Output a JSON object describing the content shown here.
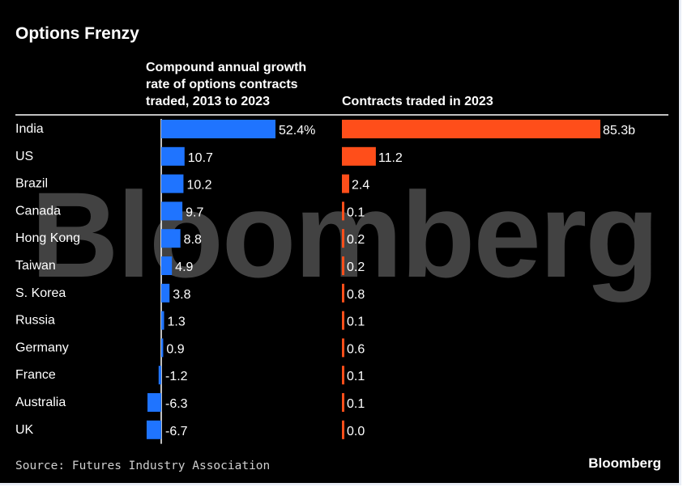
{
  "chart_data": {
    "title": "Options Frenzy",
    "source": "Source: Futures Industry Association",
    "brand": "Bloomberg",
    "watermark": "Bloomberg",
    "categories": [
      "India",
      "US",
      "Brazil",
      "Canada",
      "Hong Kong",
      "Taiwan",
      "S. Korea",
      "Russia",
      "Germany",
      "France",
      "Australia",
      "UK"
    ],
    "panels": [
      {
        "type": "bar",
        "orientation": "horizontal",
        "header": [
          "Compound annual growth",
          "rate of options contracts",
          "traded, 2013 to 2023"
        ],
        "color": "#1f74ff",
        "values": [
          52.4,
          10.7,
          10.2,
          9.7,
          8.8,
          4.9,
          3.8,
          1.3,
          0.9,
          -1.2,
          -6.3,
          -6.7
        ],
        "labels": [
          "52.4%",
          "10.7",
          "10.2",
          "9.7",
          "8.8",
          "4.9",
          "3.8",
          "1.3",
          "0.9",
          "-1.2",
          "-6.3",
          "-6.7"
        ],
        "unit": "%"
      },
      {
        "type": "bar",
        "orientation": "horizontal",
        "header": [
          "Contracts traded in 2023"
        ],
        "color": "#ff4e1a",
        "values": [
          85.3,
          11.2,
          2.4,
          0.1,
          0.2,
          0.2,
          0.8,
          0.1,
          0.6,
          0.1,
          0.1,
          0.0
        ],
        "labels": [
          "85.3b",
          "11.2",
          "2.4",
          "0.1",
          "0.2",
          "0.2",
          "0.8",
          "0.1",
          "0.6",
          "0.1",
          "0.1",
          "0.0"
        ],
        "unit": "billion contracts"
      }
    ],
    "grid": false,
    "legend": "none"
  }
}
